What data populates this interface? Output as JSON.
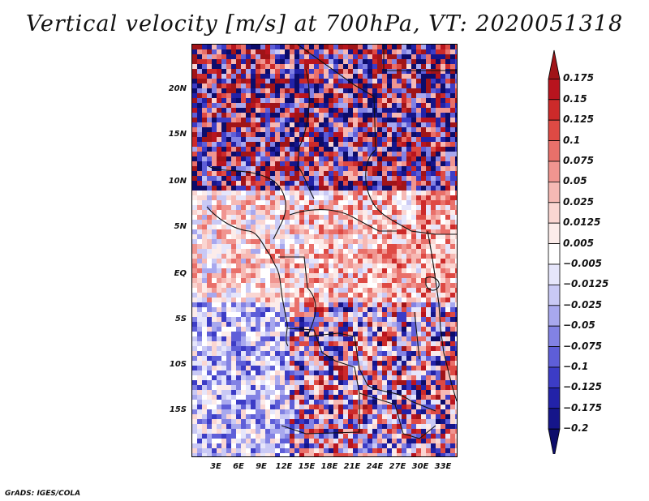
{
  "title": "Vertical velocity [m/s] at 700hPa, VT: 2020051318",
  "footer": "GrADS: IGES/COLA",
  "map": {
    "variable": "Vertical velocity",
    "level": "700hPa",
    "valid_time": "2020051318",
    "lat_ticks": [
      "20N",
      "15N",
      "10N",
      "5N",
      "EQ",
      "5S",
      "10S",
      "15S"
    ],
    "lon_ticks": [
      "3E",
      "6E",
      "9E",
      "12E",
      "15E",
      "18E",
      "21E",
      "24E",
      "27E",
      "30E",
      "33E"
    ]
  },
  "colorbar": {
    "labels": [
      "0.175",
      "0.15",
      "0.125",
      "0.1",
      "0.075",
      "0.05",
      "0.025",
      "0.0125",
      "0.005",
      "−0.005",
      "−0.0125",
      "−0.025",
      "−0.05",
      "−0.075",
      "−0.1",
      "−0.125",
      "−0.175",
      "−0.2"
    ],
    "colors": [
      "#a01418",
      "#b8141e",
      "#cc2a2a",
      "#de4a44",
      "#e9706a",
      "#f09590",
      "#f6b9b4",
      "#fad6d2",
      "#fcecea",
      "#ffffff",
      "#e6e6fb",
      "#c9c9f5",
      "#a8a8ee",
      "#8282e4",
      "#5e5ed8",
      "#3c3cc6",
      "#2222a8",
      "#15158a",
      "#0c0c6a"
    ]
  }
}
